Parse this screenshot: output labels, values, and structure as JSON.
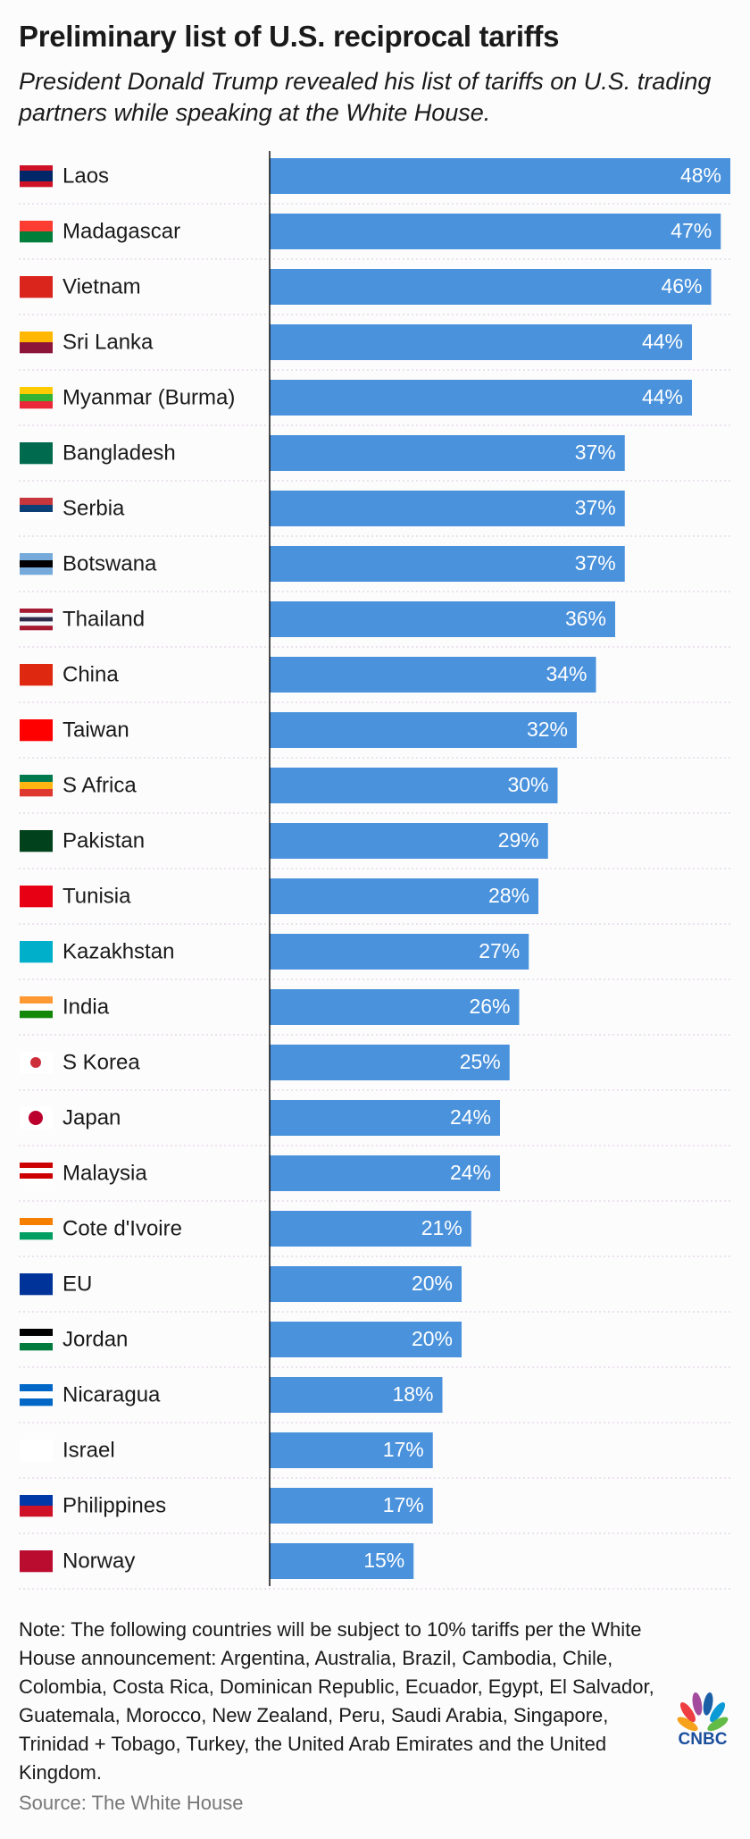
{
  "chart_data": {
    "type": "bar",
    "orientation": "horizontal",
    "title": "Preliminary list of U.S. reciprocal tariffs",
    "subtitle": "President Donald Trump revealed his list of tariffs on U.S. trading partners while speaking at the White House.",
    "categories": [
      "Laos",
      "Madagascar",
      "Vietnam",
      "Sri Lanka",
      "Myanmar (Burma)",
      "Bangladesh",
      "Serbia",
      "Botswana",
      "Thailand",
      "China",
      "Taiwan",
      "S Africa",
      "Pakistan",
      "Tunisia",
      "Kazakhstan",
      "India",
      "S Korea",
      "Japan",
      "Malaysia",
      "Cote d'Ivoire",
      "EU",
      "Jordan",
      "Nicaragua",
      "Israel",
      "Philippines",
      "Norway"
    ],
    "values": [
      48,
      47,
      46,
      44,
      44,
      37,
      37,
      37,
      36,
      34,
      32,
      30,
      29,
      28,
      27,
      26,
      25,
      24,
      24,
      21,
      20,
      20,
      18,
      17,
      17,
      15
    ],
    "value_labels": [
      "48%",
      "47%",
      "46%",
      "44%",
      "44%",
      "37%",
      "37%",
      "37%",
      "36%",
      "34%",
      "32%",
      "30%",
      "29%",
      "28%",
      "27%",
      "26%",
      "25%",
      "24%",
      "24%",
      "21%",
      "20%",
      "20%",
      "18%",
      "17%",
      "17%",
      "15%"
    ],
    "color": "#4a92dc",
    "note": "Note: The following countries will be subject to 10% tariffs per the White House announcement: Argentina, Australia, Brazil, Cambodia, Chile, Colombia, Costa Rica, Dominican Republic, Ecuador, Egypt, El Salvador, Guatemala, Morocco, New Zealand, Peru, Saudi Arabia, Singapore, Trinidad + Tobago, Turkey, the United Arab Emirates and the United Kingdom.",
    "source": "Source: The White House",
    "logo": "CNBC"
  }
}
